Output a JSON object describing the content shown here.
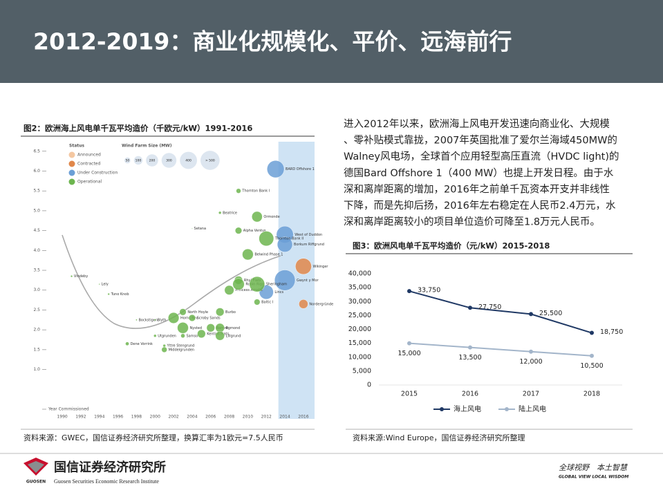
{
  "header": {
    "title": "2012-2019：商业化规模化、平价、远海前行"
  },
  "paragraph": {
    "lines": [
      "进入2012年以来，欧洲海上风电开发迅速向商业化、大规模",
      "、零补贴模式靠拢，2007年英国批准了爱尔兰海域450MW的",
      "Walney风电场，全球首个应用轻型高压直流（HVDC light)的",
      "德国Bard Offshore 1（400 MW）也提上开发日程。由于水",
      "深和离岸距离的增加，2016年之前单千瓦资本开支并非线性",
      "下降，而是先抑后扬，2016年左右稳定在人民币2.4万元，水",
      "深和离岸距离较小的项目单位造价可降至1.8万元人民币。"
    ]
  },
  "chart_data": [
    {
      "type": "scatter",
      "title": "图2：欧洲海上风电单千瓦平均造价（千欧元/kW）1991-2016",
      "source": "资料来源：GWEC，国信证券经济研究所整理，换算汇率为1欧元=7.5人民币",
      "x_label": "Year Commissioned",
      "xlim": [
        1988.5,
        2017.2
      ],
      "xticks": [
        1990,
        1992,
        1994,
        1996,
        1998,
        2000,
        2002,
        2004,
        2006,
        2008,
        2010,
        2012,
        2014,
        2016
      ],
      "ylim": [
        0,
        6.74
      ],
      "yticks": [
        {
          "value": 1,
          "label": "1.0"
        },
        1.5,
        {
          "value": 2,
          "label": "2.0"
        },
        2.5,
        {
          "value": 3,
          "label": "3.0"
        },
        3.5,
        {
          "value": 4,
          "label": "4.0"
        },
        4.5,
        {
          "value": 5,
          "label": "5.0"
        },
        5.5,
        {
          "value": 6,
          "label": "6.0"
        },
        6.5
      ],
      "shaded_xrange": [
        2013.3,
        2017.2
      ],
      "legend_title": "Status",
      "size_legend": {
        "title": "Wind Farm Size (MW)",
        "items": [
          50,
          100,
          200,
          300,
          400,
          {
            "value": 500,
            "label": "> 500"
          }
        ]
      },
      "series": [
        {
          "name": "Announced",
          "color": "#f4c7a1",
          "x": [],
          "values": [],
          "sizes": [],
          "labels": []
        },
        {
          "name": "Contracted",
          "color": "#e0874a",
          "x": [
            2016,
            2016
          ],
          "values": [
            3.6,
            2.65
          ],
          "sizes": [
            350,
            111
          ],
          "labels": [
            "Wikinger",
            "Nordergründe"
          ]
        },
        {
          "name": "Under Construction",
          "color": "#6b9fd6",
          "x": [
            2013,
            2014,
            2014,
            2012,
            2014
          ],
          "values": [
            6.05,
            4.4,
            3.25,
            2.95,
            4.15
          ],
          "sizes": [
            400,
            389,
            576,
            270,
            312
          ],
          "labels": [
            "BARD Offshore 1",
            "West of Duddon",
            "Gwynt y Mor",
            "Lincs",
            "Borkum Riffgrund"
          ]
        },
        {
          "name": "Operational",
          "color": "#6db54f",
          "x": [
            1991,
            1994,
            1995,
            1997,
            1998,
            2000,
            2000,
            2001,
            2001,
            2002,
            2003,
            2003,
            2003,
            2004,
            2004,
            2005,
            2006,
            2007,
            2007,
            2007,
            2007,
            2008,
            2009,
            2009,
            2009,
            2009,
            2010,
            2011,
            2011,
            2011,
            2012
          ],
          "values": [
            3.35,
            3.15,
            2.9,
            1.65,
            2.25,
            1.85,
            2.25,
            1.6,
            1.5,
            2.3,
            1.85,
            2.45,
            2.05,
            2.3,
            4.55,
            1.9,
            2.05,
            4.95,
            2.45,
            2.05,
            1.85,
            3.0,
            5.5,
            4.5,
            3.25,
            3.15,
            3.9,
            4.85,
            2.7,
            3.15,
            4.3
          ],
          "sizes": [
            5,
            2,
            5,
            17,
            3,
            10,
            4,
            10,
            40,
            160,
            23,
            60,
            166,
            60,
            1,
            90,
            90,
            10,
            90,
            108,
            110,
            120,
            30,
            60,
            90,
            180,
            165,
            150,
            48,
            317,
            295
          ],
          "labels": [
            "Vindeby",
            "Lely",
            "Tuno Knob",
            "Dene Vorrink",
            "Bockstigen",
            "Utgrunden",
            "Blyth",
            "Yttre Stengrund",
            "Middelgrunden",
            "Horns Rev",
            "Samso",
            "North Hoyle",
            "Nysted",
            "Scroby Sands",
            "Setana",
            "Kentish Flats",
            "Barrow",
            "Beatrice",
            "Burbo",
            "Egmond",
            "Lillgrund",
            "Princess Amalia",
            "Thornton Bank I",
            "Alpha Ventus",
            "Rhyl Flats",
            "Robin Rigg",
            "Belwind Phase 1",
            "Ormonde",
            "Baltic I",
            "Sheringham",
            "Thornton Bank II"
          ]
        }
      ]
    },
    {
      "type": "line",
      "title": "图3：欧洲风电单千瓦平均造价（元/kW）2015-2018",
      "source": "资料来源:Wind Europe，国信证券经济研究所整理",
      "categories": [
        "2015",
        "2016",
        "2017",
        "2018"
      ],
      "ylim": [
        0,
        40000
      ],
      "yticks": [
        0,
        {
          "value": 5000,
          "label": "5,000"
        },
        {
          "value": 10000,
          "label": "10,000"
        },
        {
          "value": 15000,
          "label": "15,000"
        },
        {
          "value": 20000,
          "label": "20,000"
        },
        {
          "value": 25000,
          "label": "25,000"
        },
        {
          "value": 30000,
          "label": "30,000"
        },
        {
          "value": 35000,
          "label": "35,000"
        },
        {
          "value": 40000,
          "label": "40,000"
        }
      ],
      "legend": "bottom",
      "series": [
        {
          "name": "海上风电",
          "color": "#1f3864",
          "values": [
            33750,
            27750,
            25500,
            18750
          ],
          "value_labels": [
            "33,750",
            "27,750",
            "25,500",
            "18,750"
          ]
        },
        {
          "name": "陆上风电",
          "color": "#a3b5ca",
          "values": [
            15000,
            13500,
            12000,
            10500
          ],
          "value_labels": [
            "15,000",
            "13,500",
            "12,000",
            "10,500"
          ]
        }
      ]
    }
  ],
  "footer": {
    "org": "国信证券经济研究所",
    "org_en": "Guosen Securities Economic Research Institute",
    "logo_text": "GUOSEN",
    "tagline": "全球视野　本土智慧",
    "tagline_en": "GLOBAL VIEW   LOCAL WISDOM"
  }
}
